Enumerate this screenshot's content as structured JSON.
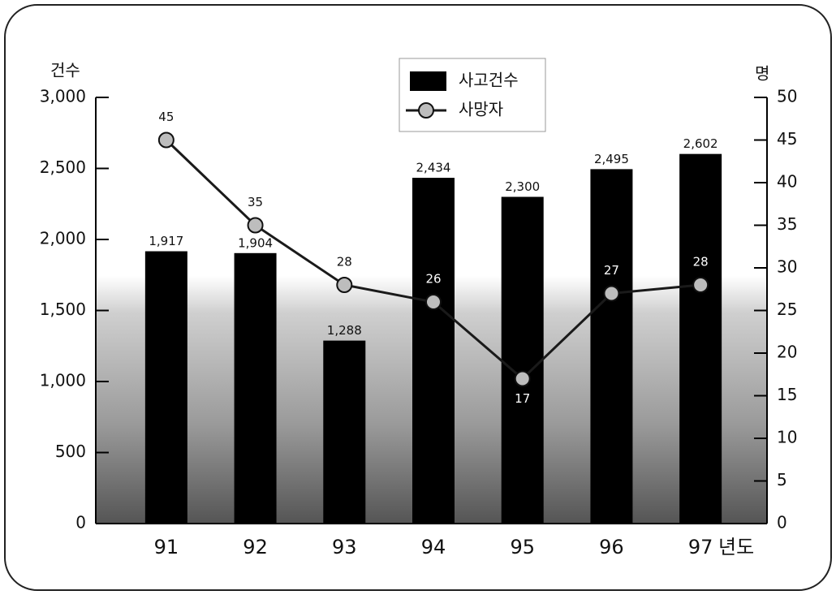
{
  "chart_data": {
    "type": "bar",
    "categories": [
      "91",
      "92",
      "93",
      "94",
      "95",
      "96",
      "97"
    ],
    "x_label": "년도",
    "y_label": "건수",
    "y2_label": "명",
    "series": [
      {
        "name": "사고건수",
        "type": "bar",
        "color": "#000000",
        "values": [
          1917,
          1904,
          1288,
          2434,
          2300,
          2495,
          2602
        ],
        "value_labels": [
          "1,917",
          "1,904",
          "1,288",
          "2,434",
          "2,300",
          "2,495",
          "2,602"
        ]
      },
      {
        "name": "사망자",
        "type": "line",
        "axis": "y2",
        "color": "#1a1a1a",
        "values": [
          45,
          35,
          28,
          26,
          17,
          27,
          28
        ]
      }
    ],
    "ylim": [
      0,
      3000
    ],
    "yticks": [
      0,
      500,
      {
        "value": 1000,
        "label": "1,000"
      },
      {
        "value": 1500,
        "label": "1,500"
      },
      {
        "value": 2000,
        "label": "2,000"
      },
      {
        "value": 2500,
        "label": "2,500"
      },
      {
        "value": 3000,
        "label": "3,000"
      }
    ],
    "y2lim": [
      0,
      50
    ],
    "y2ticks": [
      0,
      5,
      10,
      15,
      20,
      25,
      30,
      35,
      40,
      45,
      50
    ],
    "legend": "top",
    "grid": false
  }
}
